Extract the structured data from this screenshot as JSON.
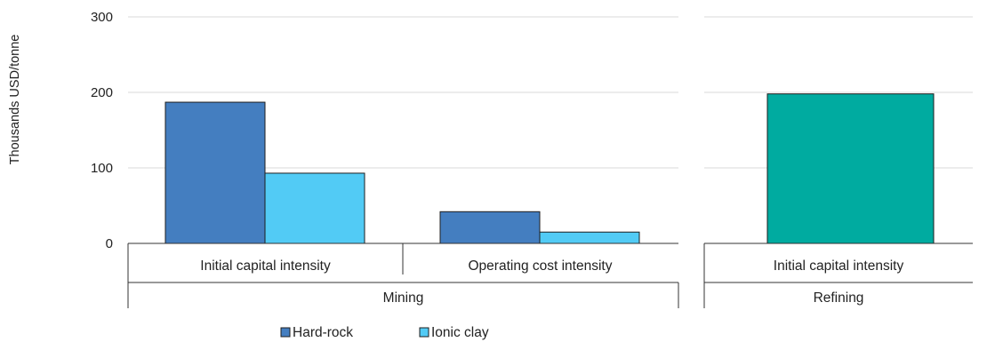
{
  "chart_data": {
    "type": "bar",
    "ylabel": "Thousands USD/tonne",
    "ylim": [
      0,
      300
    ],
    "yticks": [
      0,
      100,
      200,
      300
    ],
    "grid": true,
    "legend_position": "bottom-left",
    "panels": [
      {
        "group": "Mining",
        "categories": [
          "Initial capital intensity",
          "Operating cost intensity"
        ],
        "series": [
          {
            "name": "Hard-rock",
            "color": "#447ec0",
            "values": [
              187,
              42
            ]
          },
          {
            "name": "Ionic clay",
            "color": "#52cbf5",
            "values": [
              93,
              15
            ]
          }
        ]
      },
      {
        "group": "Refining",
        "categories": [
          "Initial capital intensity"
        ],
        "series": [
          {
            "name": "",
            "color": "#00aba0",
            "values": [
              198
            ]
          }
        ]
      }
    ],
    "legend": [
      {
        "label": "Hard-rock",
        "color": "#447ec0"
      },
      {
        "label": "Ionic clay",
        "color": "#52cbf5"
      }
    ]
  }
}
